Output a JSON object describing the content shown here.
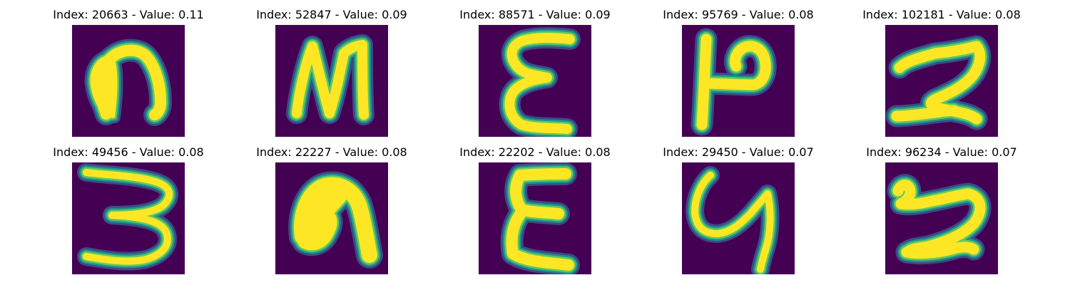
{
  "colors": {
    "background": "#440154",
    "stroke_core": "#fde725",
    "stroke_edge_1": "#5ec962",
    "stroke_edge_2": "#21918c",
    "stroke_edge_3": "#3b528b",
    "text": "#000000"
  },
  "chart_data": {
    "type": "image-grid",
    "rows": 2,
    "cols": 5,
    "colormap": "viridis",
    "title": "",
    "panels": [
      {
        "index": 20663,
        "value": 0.11,
        "title": "Index: 20663 - Value: 0.11",
        "glyph": "blob-arch"
      },
      {
        "index": 52847,
        "value": 0.09,
        "title": "Index: 52847 - Value: 0.09",
        "glyph": "N-shape"
      },
      {
        "index": 88571,
        "value": 0.09,
        "title": "Index: 88571 - Value: 0.09",
        "glyph": "E-shape"
      },
      {
        "index": 95769,
        "value": 0.08,
        "title": "Index: 95769 - Value: 0.08",
        "glyph": "P-sideways"
      },
      {
        "index": 102181,
        "value": 0.08,
        "title": "Index: 102181 - Value: 0.08",
        "glyph": "2-shape"
      },
      {
        "index": 49456,
        "value": 0.08,
        "title": "Index: 49456 - Value: 0.08",
        "glyph": "3-shape"
      },
      {
        "index": 22227,
        "value": 0.08,
        "title": "Index: 22227 - Value: 0.08",
        "glyph": "thick-arch"
      },
      {
        "index": 22202,
        "value": 0.08,
        "title": "Index: 22202 - Value: 0.08",
        "glyph": "E-shape-2"
      },
      {
        "index": 29450,
        "value": 0.07,
        "title": "Index: 29450 - Value: 0.07",
        "glyph": "y-shape"
      },
      {
        "index": 96234,
        "value": 0.07,
        "title": "Index: 96234 - Value: 0.07",
        "glyph": "squiggle-2"
      }
    ]
  }
}
